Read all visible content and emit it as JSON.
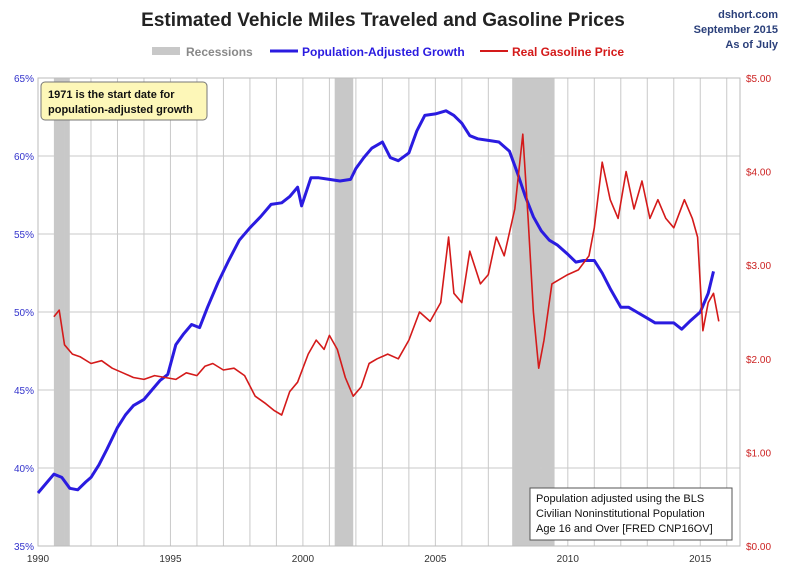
{
  "header": {
    "title": "Estimated Vehicle Miles Traveled and Gasoline Prices",
    "source_line1": "dshort.com",
    "source_line2": "September 2015",
    "source_line3": "As of July"
  },
  "legend": {
    "recessions": "Recessions",
    "population_adjusted": "Population-Adjusted Growth",
    "gas_price": "Real Gasoline Price"
  },
  "annotations": {
    "start_note_line1": "1971 is the start date for",
    "start_note_line2": "population-adjusted growth",
    "pop_note_line1": "Population adjusted using the BLS",
    "pop_note_line2": "Civilian Noninstitutional Population",
    "pop_note_line3": "Age 16 and Over  [FRED CNP16OV]"
  },
  "colors": {
    "population_line": "#2a1be0",
    "gas_line": "#d41a1a",
    "recession": "#c8c8c8",
    "grid": "#c9c9c9",
    "left_axis_text": "#3333cc",
    "right_axis_text": "#cc2222",
    "note_fill": "#fdf7b8"
  },
  "chart_data": {
    "type": "line",
    "title": "Estimated Vehicle Miles Traveled and Gasoline Prices",
    "x_ticks": [
      1990,
      1995,
      2000,
      2005,
      2010,
      2015
    ],
    "xlim": [
      1990,
      2016.5
    ],
    "y_left": {
      "ticks": [
        "35%",
        "40%",
        "45%",
        "50%",
        "55%",
        "60%",
        "65%"
      ],
      "lim": [
        35,
        65
      ]
    },
    "y_right": {
      "ticks": [
        "$0.00",
        "$1.00",
        "$2.00",
        "$3.00",
        "$4.00",
        "$5.00"
      ],
      "lim": [
        0,
        5
      ]
    },
    "grid": true,
    "legend_position": "top",
    "recessions": [
      [
        1990.6,
        1991.2
      ],
      [
        2001.2,
        2001.9
      ],
      [
        2007.9,
        2009.5
      ]
    ],
    "series": [
      {
        "name": "Population-Adjusted Growth",
        "axis": "left",
        "x": [
          1990.0,
          1990.3,
          1990.6,
          1990.9,
          1991.2,
          1991.5,
          1991.8,
          1992.0,
          1992.3,
          1992.6,
          1993.0,
          1993.3,
          1993.6,
          1994.0,
          1994.3,
          1994.6,
          1994.9,
          1995.2,
          1995.5,
          1995.8,
          1996.1,
          1996.4,
          1996.8,
          1997.2,
          1997.6,
          1998.0,
          1998.4,
          1998.8,
          1999.2,
          1999.5,
          1999.8,
          1999.95,
          2000.3,
          2000.6,
          2001.0,
          2001.4,
          2001.8,
          2002.0,
          2002.3,
          2002.6,
          2003.0,
          2003.3,
          2003.6,
          2004.0,
          2004.3,
          2004.6,
          2005.0,
          2005.4,
          2005.7,
          2006.0,
          2006.3,
          2006.6,
          2007.0,
          2007.4,
          2007.8,
          2008.1,
          2008.4,
          2008.7,
          2009.0,
          2009.3,
          2009.6,
          2010.0,
          2010.3,
          2010.6,
          2011.0,
          2011.3,
          2011.6,
          2012.0,
          2012.3,
          2012.6,
          2013.0,
          2013.3,
          2013.6,
          2014.0,
          2014.3,
          2014.6,
          2015.0,
          2015.3,
          2015.5
        ],
        "values": [
          38.4,
          39.0,
          39.6,
          39.4,
          38.7,
          38.6,
          39.1,
          39.4,
          40.2,
          41.2,
          42.6,
          43.4,
          44.0,
          44.4,
          45.0,
          45.6,
          46.0,
          47.9,
          48.6,
          49.2,
          49.0,
          50.3,
          51.9,
          53.3,
          54.6,
          55.4,
          56.1,
          56.9,
          57.0,
          57.4,
          58.0,
          56.8,
          58.6,
          58.6,
          58.5,
          58.4,
          58.5,
          59.2,
          59.9,
          60.5,
          60.9,
          59.9,
          59.7,
          60.2,
          61.6,
          62.6,
          62.7,
          62.9,
          62.6,
          62.1,
          61.3,
          61.1,
          61.0,
          60.9,
          60.3,
          58.9,
          57.4,
          56.1,
          55.2,
          54.6,
          54.3,
          53.7,
          53.2,
          53.3,
          53.3,
          52.5,
          51.5,
          50.3,
          50.3,
          50.0,
          49.6,
          49.3,
          49.3,
          49.3,
          48.9,
          49.4,
          50.0,
          51.2,
          52.6
        ]
      },
      {
        "name": "Real Gasoline Price",
        "axis": "right",
        "x": [
          1990.6,
          1990.8,
          1991.0,
          1991.3,
          1991.6,
          1992.0,
          1992.4,
          1992.8,
          1993.2,
          1993.6,
          1994.0,
          1994.4,
          1994.8,
          1995.2,
          1995.6,
          1996.0,
          1996.3,
          1996.6,
          1997.0,
          1997.4,
          1997.8,
          1998.2,
          1998.6,
          1998.9,
          1999.2,
          1999.5,
          1999.8,
          2000.2,
          2000.5,
          2000.8,
          2001.0,
          2001.3,
          2001.6,
          2001.9,
          2002.2,
          2002.5,
          2002.8,
          2003.2,
          2003.6,
          2004.0,
          2004.4,
          2004.8,
          2005.2,
          2005.5,
          2005.7,
          2006.0,
          2006.3,
          2006.7,
          2007.0,
          2007.3,
          2007.6,
          2008.0,
          2008.3,
          2008.5,
          2008.7,
          2008.9,
          2009.1,
          2009.4,
          2009.7,
          2010.0,
          2010.4,
          2010.8,
          2011.0,
          2011.3,
          2011.6,
          2011.9,
          2012.2,
          2012.5,
          2012.8,
          2013.1,
          2013.4,
          2013.7,
          2014.0,
          2014.4,
          2014.7,
          2014.9,
          2015.1,
          2015.3,
          2015.5,
          2015.7
        ],
        "values": [
          2.45,
          2.52,
          2.15,
          2.05,
          2.02,
          1.95,
          1.98,
          1.9,
          1.85,
          1.8,
          1.78,
          1.82,
          1.8,
          1.78,
          1.85,
          1.82,
          1.92,
          1.95,
          1.88,
          1.9,
          1.82,
          1.6,
          1.52,
          1.45,
          1.4,
          1.65,
          1.75,
          2.05,
          2.2,
          2.1,
          2.25,
          2.1,
          1.8,
          1.6,
          1.7,
          1.95,
          2.0,
          2.05,
          2.0,
          2.2,
          2.5,
          2.4,
          2.6,
          3.3,
          2.7,
          2.6,
          3.15,
          2.8,
          2.9,
          3.3,
          3.1,
          3.6,
          4.4,
          3.5,
          2.5,
          1.9,
          2.2,
          2.8,
          2.85,
          2.9,
          2.95,
          3.1,
          3.4,
          4.1,
          3.7,
          3.5,
          4.0,
          3.6,
          3.9,
          3.5,
          3.7,
          3.5,
          3.4,
          3.7,
          3.5,
          3.3,
          2.3,
          2.6,
          2.7,
          2.4
        ]
      }
    ]
  }
}
